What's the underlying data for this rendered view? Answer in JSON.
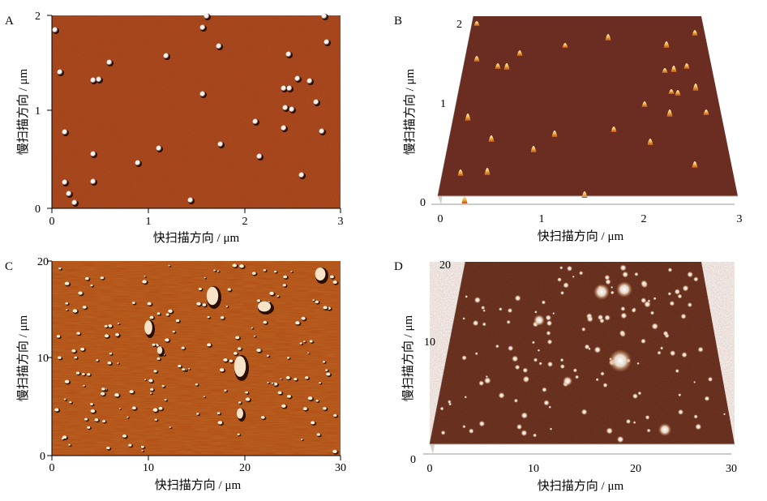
{
  "panels": [
    {
      "label": "A",
      "x_ticks": [
        "0",
        "1",
        "2",
        "3"
      ],
      "y_ticks": [
        "0",
        "1",
        "2"
      ],
      "x_axis_label": "快扫描方向 / μm",
      "y_axis_label": "慢扫描方向 / μm"
    },
    {
      "label": "B",
      "x_ticks": [
        "0",
        "1",
        "2",
        "3"
      ],
      "y_ticks": [
        "0",
        "1",
        "2"
      ],
      "x_axis_label": "快扫描方向 / μm",
      "y_axis_label": "慢扫描方向 / μm"
    },
    {
      "label": "C",
      "x_ticks": [
        "0",
        "10",
        "20",
        "30"
      ],
      "y_ticks": [
        "0",
        "10",
        "20"
      ],
      "x_axis_label": "快扫描方向 / μm",
      "y_axis_label": "慢扫描方向 / μm"
    },
    {
      "label": "D",
      "x_ticks": [
        "0",
        "10",
        "20",
        "30"
      ],
      "y_ticks": [
        "0",
        "10",
        "20"
      ],
      "x_axis_label": "快扫描方向 / μm",
      "y_axis_label": "慢扫描方向 / μm"
    }
  ],
  "colors": {
    "afm_background": "#a33a12",
    "afm_background_dark": "#6b2c22",
    "particle_highlight": "#ffffff",
    "particle_shadow": "#1a0a05",
    "peak_color": "#f0b040"
  }
}
